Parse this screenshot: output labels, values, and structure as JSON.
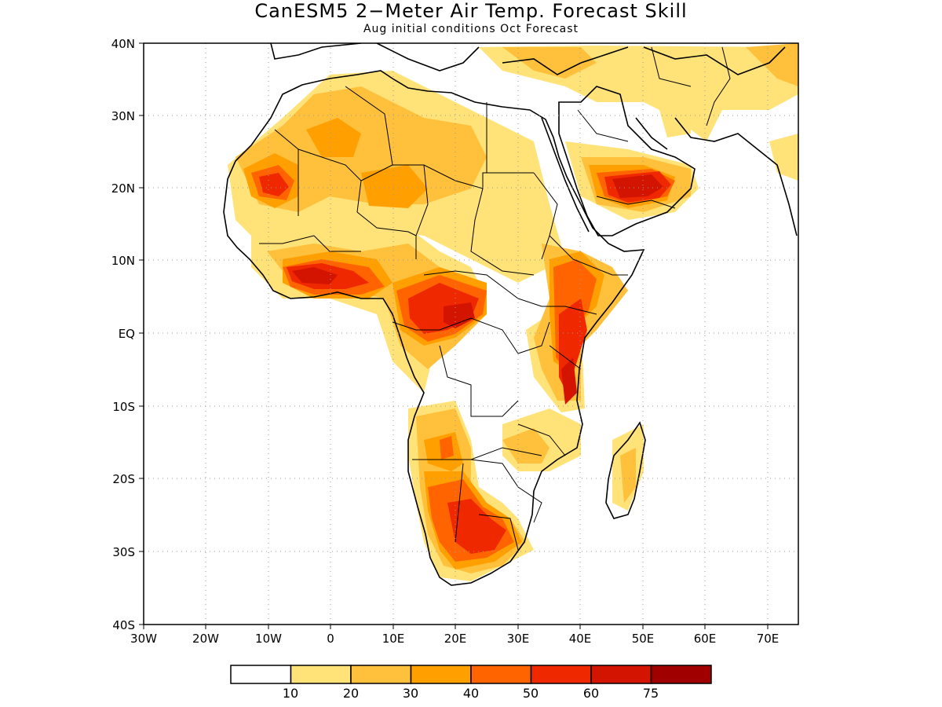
{
  "title": "CanESM5 2−Meter Air Temp. Forecast Skill",
  "subtitle": "Aug initial conditions  Oct Forecast",
  "axes": {
    "lat_labels": [
      "40N",
      "30N",
      "20N",
      "10N",
      "EQ",
      "10S",
      "20S",
      "30S",
      "40S"
    ],
    "lon_labels": [
      "30W",
      "20W",
      "10W",
      "0",
      "10E",
      "20E",
      "30E",
      "40E",
      "50E",
      "60E",
      "70E"
    ],
    "grid": "dotted"
  },
  "colorbar": {
    "labels": [
      "10",
      "20",
      "30",
      "40",
      "50",
      "60",
      "75"
    ],
    "colors": [
      "#ffffff",
      "#ffe278",
      "#ffc03c",
      "#ffa000",
      "#ff6400",
      "#f02800",
      "#d21400",
      "#a00000"
    ]
  },
  "colors": {
    "land_outline": "#000000",
    "background": "#ffffff"
  }
}
